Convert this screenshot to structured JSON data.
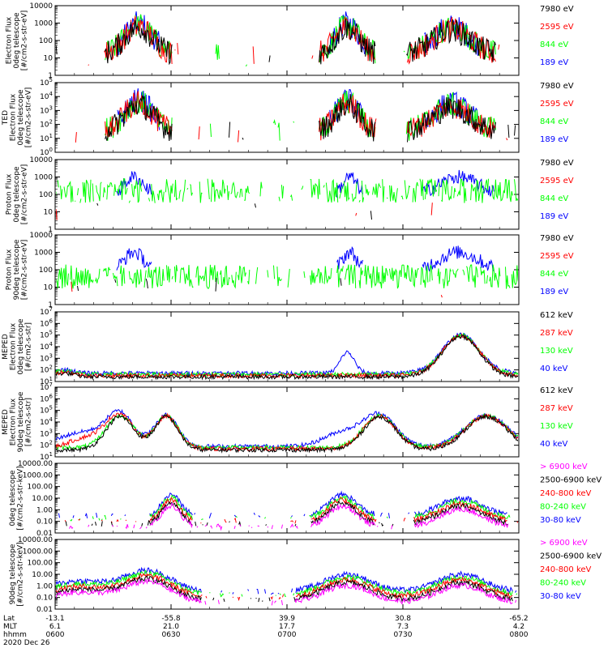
{
  "colors": {
    "black": "#000000",
    "red": "#ff0000",
    "green": "#00ff00",
    "blue": "#0000ff",
    "magenta": "#ff00ff"
  },
  "chart_data": [
    {
      "type": "line",
      "ylabel_lines": [
        "Electron Flux",
        "0deg telescope",
        "[#/cm2-s-str-eV]"
      ],
      "yscale": "log",
      "ylim": [
        1,
        10000
      ],
      "yticks": [
        "1",
        "10",
        "100",
        "1000",
        "10000"
      ],
      "legend": [
        "7980 eV",
        "2595 eV",
        "844 eV",
        "189 eV"
      ],
      "legend_colors": [
        "black",
        "red",
        "green",
        "blue"
      ]
    },
    {
      "type": "line",
      "ylabel_lines": [
        "TED",
        "Electron Flux",
        "0deg telescope",
        "[#/cm2-s-str-eV]"
      ],
      "yscale": "log",
      "ylim": [
        1,
        100000
      ],
      "yticks": [
        "10^0",
        "10^1",
        "10^2",
        "10^3",
        "10^4",
        "10^5"
      ],
      "legend": [
        "7980 eV",
        "2595 eV",
        "844 eV",
        "189 eV"
      ],
      "legend_colors": [
        "black",
        "red",
        "green",
        "blue"
      ]
    },
    {
      "type": "line",
      "ylabel_lines": [
        "Proton Flux",
        "0deg telescope",
        "[#/cm2-s-str-eV]"
      ],
      "yscale": "log",
      "ylim": [
        1,
        10000
      ],
      "yticks": [
        "1",
        "10",
        "100",
        "1000",
        "10000"
      ],
      "legend": [
        "7980 eV",
        "2595 eV",
        "844 eV",
        "189 eV"
      ],
      "legend_colors": [
        "black",
        "red",
        "green",
        "blue"
      ]
    },
    {
      "type": "line",
      "ylabel_lines": [
        "Proton Flux",
        "90deg telescope",
        "[#/cm2-s-str-eV]"
      ],
      "yscale": "log",
      "ylim": [
        1,
        10000
      ],
      "yticks": [
        "1",
        "10",
        "100",
        "1000",
        "10000"
      ],
      "legend": [
        "7980 eV",
        "2595 eV",
        "844 eV",
        "189 eV"
      ],
      "legend_colors": [
        "black",
        "red",
        "green",
        "blue"
      ]
    },
    {
      "type": "line",
      "ylabel_lines": [
        "MEPED",
        "Electron Flux",
        "0deg telescope",
        "[#/cm2-s-str]"
      ],
      "yscale": "log",
      "ylim": [
        10,
        10000000
      ],
      "yticks": [
        "10^1",
        "10^2",
        "10^3",
        "10^4",
        "10^5",
        "10^6",
        "10^7"
      ],
      "legend": [
        "612 keV",
        "287 keV",
        "130 keV",
        "40 keV"
      ],
      "legend_colors": [
        "black",
        "red",
        "green",
        "blue"
      ]
    },
    {
      "type": "line",
      "ylabel_lines": [
        "MEPED",
        "Electron Flux",
        "90deg telescope",
        "[#/cm2-s-str]"
      ],
      "yscale": "log",
      "ylim": [
        10,
        10000000
      ],
      "yticks": [
        "10^1",
        "10^2",
        "10^3",
        "10^4",
        "10^5",
        "10^6",
        "10^7"
      ],
      "legend": [
        "612 keV",
        "287 keV",
        "130 keV",
        "40 keV"
      ],
      "legend_colors": [
        "black",
        "red",
        "green",
        "blue"
      ]
    },
    {
      "type": "line",
      "ylabel_lines": [
        "0deg telescope",
        "[#/cm2-s-str-keV]"
      ],
      "yscale": "log",
      "ylim": [
        0.01,
        10000
      ],
      "yticks": [
        "0.01",
        "0.10",
        "1.00",
        "10.00",
        "100.00",
        "1000.00",
        "10000.00"
      ],
      "legend": [
        "> 6900 keV",
        "2500-6900 keV",
        "240-800 keV",
        "80-240 keV",
        "30-80 keV"
      ],
      "legend_colors": [
        "magenta",
        "black",
        "red",
        "green",
        "blue"
      ]
    },
    {
      "type": "line",
      "ylabel_lines": [
        "90deg telescope",
        "[#/cm2-s-str-keV]"
      ],
      "yscale": "log",
      "ylim": [
        0.01,
        10000
      ],
      "yticks": [
        "0.01",
        "0.10",
        "1.00",
        "10.00",
        "100.00",
        "1000.00",
        "10000.00"
      ],
      "legend": [
        "> 6900 keV",
        "2500-6900 keV",
        "240-800 keV",
        "80-240 keV",
        "30-80 keV"
      ],
      "legend_colors": [
        "magenta",
        "black",
        "red",
        "green",
        "blue"
      ]
    }
  ],
  "footer": {
    "row_labels": [
      "Lat",
      "MLT",
      "hhmm",
      "2020 Dec 26"
    ],
    "ticks": [
      {
        "lat": "-13.1",
        "mlt": "6.1",
        "hhmm": "0600"
      },
      {
        "lat": "-55.8",
        "mlt": "21.0",
        "hhmm": "0630"
      },
      {
        "lat": "39.9",
        "mlt": "17.7",
        "hhmm": "0700"
      },
      {
        "lat": "30.8",
        "mlt": "7.3",
        "hhmm": "0730"
      },
      {
        "lat": "-65.2",
        "mlt": "4.2",
        "hhmm": "0800"
      }
    ]
  }
}
